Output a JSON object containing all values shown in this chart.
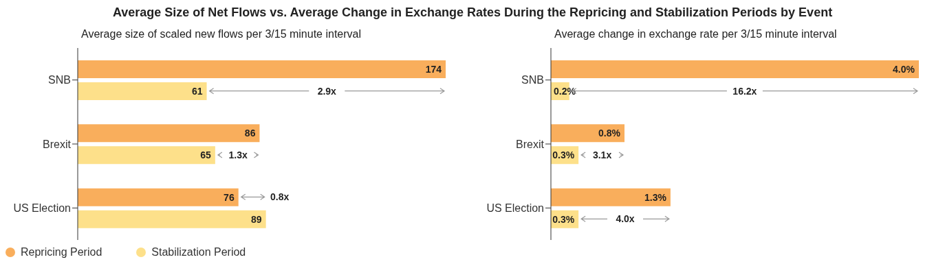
{
  "chart_data": [
    {
      "type": "bar",
      "orientation": "horizontal",
      "title": "Average Size of Net Flows vs. Average Change in Exchange Rates During the Repricing and Stabilization Periods by Event",
      "subtitle": "Average size of scaled new flows per 3/15 minute interval",
      "categories": [
        "SNB",
        "Brexit",
        "US Election"
      ],
      "series": [
        {
          "name": "Repricing Period",
          "color": "#f9ae5c",
          "values": [
            174,
            86,
            76
          ]
        },
        {
          "name": "Stabilization Period",
          "color": "#fde08a",
          "values": [
            61,
            65,
            89
          ]
        }
      ],
      "data_labels": true,
      "tick_labels": "y",
      "legend": "bottom",
      "annotations": [
        "2.9x",
        "1.3x",
        "0.8x"
      ]
    },
    {
      "type": "bar",
      "orientation": "horizontal",
      "subtitle": "Average change in exchange rate per 3/15 minute interval",
      "categories": [
        "SNB",
        "Brexit",
        "US Election"
      ],
      "series": [
        {
          "color": "#f9ae5c",
          "values": [
            4.0,
            0.8,
            1.3
          ],
          "value_labels": [
            "4.0%",
            "0.8%",
            "1.3%"
          ]
        },
        {
          "color": "#fde08a",
          "values": [
            0.2,
            0.3,
            0.3
          ],
          "value_labels": [
            "0.2%",
            "0.3%",
            "0.3%"
          ]
        }
      ],
      "tick_labels": "y",
      "annotations": [
        "16.2x",
        "3.1x",
        "4.0x"
      ]
    }
  ]
}
